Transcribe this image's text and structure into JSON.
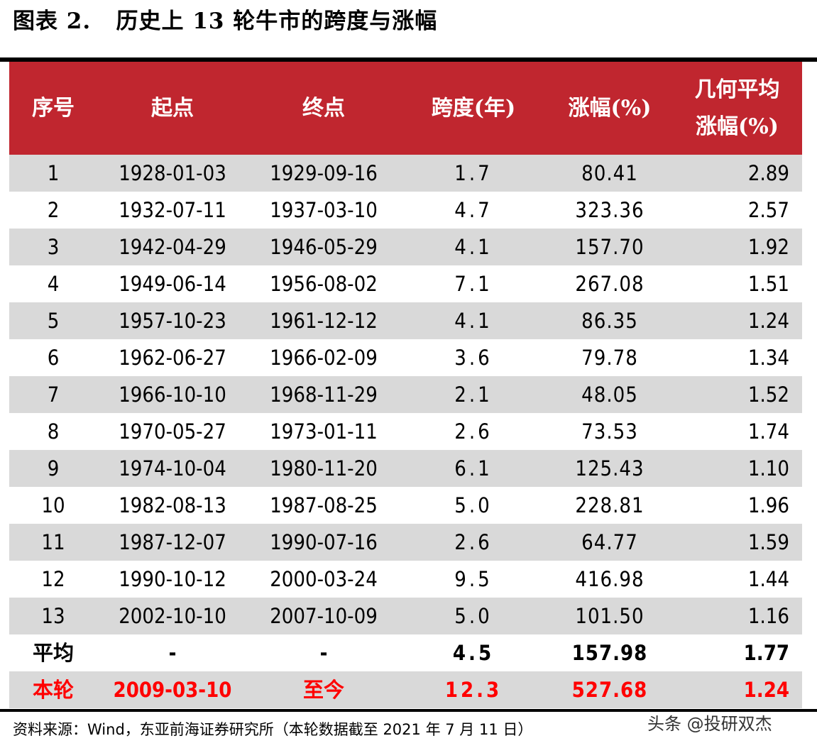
{
  "title": "图表 2.   历史上 13 轮牛市的跨度与涨幅",
  "table": {
    "headers": [
      "序号",
      "起点",
      "终点",
      "跨度(年)",
      "涨幅(%)",
      "几何平均\n涨幅(%)"
    ],
    "header_color": "#c0262f",
    "rows": [
      [
        "1",
        "1928-01-03",
        "1929-09-16",
        "1.7",
        "80.41",
        "2.89"
      ],
      [
        "2",
        "1932-07-11",
        "1937-03-10",
        "4.7",
        "323.36",
        "2.57"
      ],
      [
        "3",
        "1942-04-29",
        "1946-05-29",
        "4.1",
        "157.70",
        "1.92"
      ],
      [
        "4",
        "1949-06-14",
        "1956-08-02",
        "7.1",
        "267.08",
        "1.51"
      ],
      [
        "5",
        "1957-10-23",
        "1961-12-12",
        "4.1",
        "86.35",
        "1.24"
      ],
      [
        "6",
        "1962-06-27",
        "1966-02-09",
        "3.6",
        "79.78",
        "1.34"
      ],
      [
        "7",
        "1966-10-10",
        "1968-11-29",
        "2.1",
        "48.05",
        "1.52"
      ],
      [
        "8",
        "1970-05-27",
        "1973-01-11",
        "2.6",
        "73.53",
        "1.74"
      ],
      [
        "9",
        "1974-10-04",
        "1980-11-20",
        "6.1",
        "125.43",
        "1.10"
      ],
      [
        "10",
        "1982-08-13",
        "1987-08-25",
        "5.0",
        "228.81",
        "1.96"
      ],
      [
        "11",
        "1987-12-07",
        "1990-07-16",
        "2.6",
        "64.77",
        "1.59"
      ],
      [
        "12",
        "1990-10-12",
        "2000-03-24",
        "9.5",
        "416.98",
        "1.44"
      ],
      [
        "13",
        "2002-10-10",
        "2007-10-09",
        "5.0",
        "101.50",
        "1.16"
      ]
    ],
    "average": [
      "平均",
      "-",
      "-",
      "4.5",
      "157.98",
      "1.77"
    ],
    "current": [
      "本轮",
      "2009-03-10",
      "至今",
      "12.3",
      "527.68",
      "1.24"
    ],
    "current_color": "#ff0000"
  },
  "source": "资料来源：Wind，东亚前海证券研究所（本轮数据截至 2021 年 7 月 11 日）",
  "watermark": "头条 @投研双杰"
}
